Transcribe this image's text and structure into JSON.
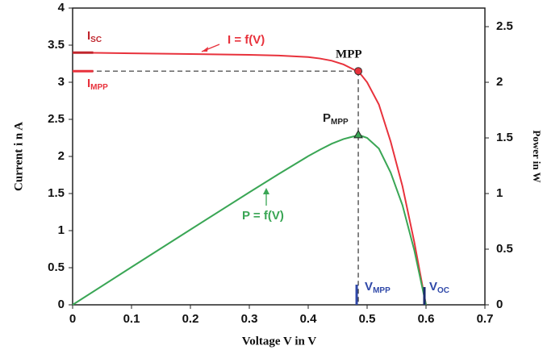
{
  "chart_data": {
    "type": "line",
    "x_label": "Voltage V in V",
    "y_label": "Current i n A",
    "y2_label": "Power in W",
    "x": [
      0,
      0.1,
      0.2,
      0.3,
      0.35,
      0.4,
      0.42,
      0.44,
      0.46,
      0.47,
      0.48,
      0.49,
      0.5,
      0.52,
      0.54,
      0.56,
      0.58,
      0.6
    ],
    "series": [
      {
        "name": "I = f(V)",
        "color": "#e8323c",
        "values": [
          3.4,
          3.39,
          3.38,
          3.37,
          3.36,
          3.34,
          3.32,
          3.29,
          3.24,
          3.2,
          3.16,
          3.1,
          3.0,
          2.7,
          2.2,
          1.6,
          0.85,
          0
        ]
      },
      {
        "name": "P = f(V)",
        "color": "#3aa655",
        "axis": "y2",
        "values": [
          0,
          0.339,
          0.676,
          1.011,
          1.176,
          1.336,
          1.394,
          1.448,
          1.49,
          1.504,
          1.517,
          1.519,
          1.5,
          1.404,
          1.188,
          0.896,
          0.493,
          0
        ]
      }
    ],
    "xlim": [
      0,
      0.7
    ],
    "xticks": [
      0,
      0.1,
      0.2,
      0.3,
      0.4,
      0.5,
      0.6,
      0.7
    ],
    "ylim": [
      0,
      4
    ],
    "yticks": [
      0,
      0.5,
      1,
      1.5,
      2,
      2.5,
      3,
      3.5,
      4
    ],
    "y2lim": [
      0,
      2.667
    ],
    "y2ticks": [
      0,
      0.5,
      1,
      1.5,
      2,
      2.5
    ],
    "mpp": {
      "label": "MPP",
      "x": 0.485,
      "y": 3.15,
      "color": "#e8323c"
    },
    "pmpp": {
      "text": "P",
      "sub": "MPP",
      "x": 0.485,
      "y2": 1.53
    },
    "isc": {
      "text": "I",
      "sub": "SC",
      "value": 3.4
    },
    "impp": {
      "text": "I",
      "sub": "MPP",
      "value": 3.15
    },
    "vmpp": {
      "text": "V",
      "sub": "MPP",
      "value": 0.485
    },
    "voc": {
      "text": "V",
      "sub": "OC",
      "value": 0.6
    }
  }
}
